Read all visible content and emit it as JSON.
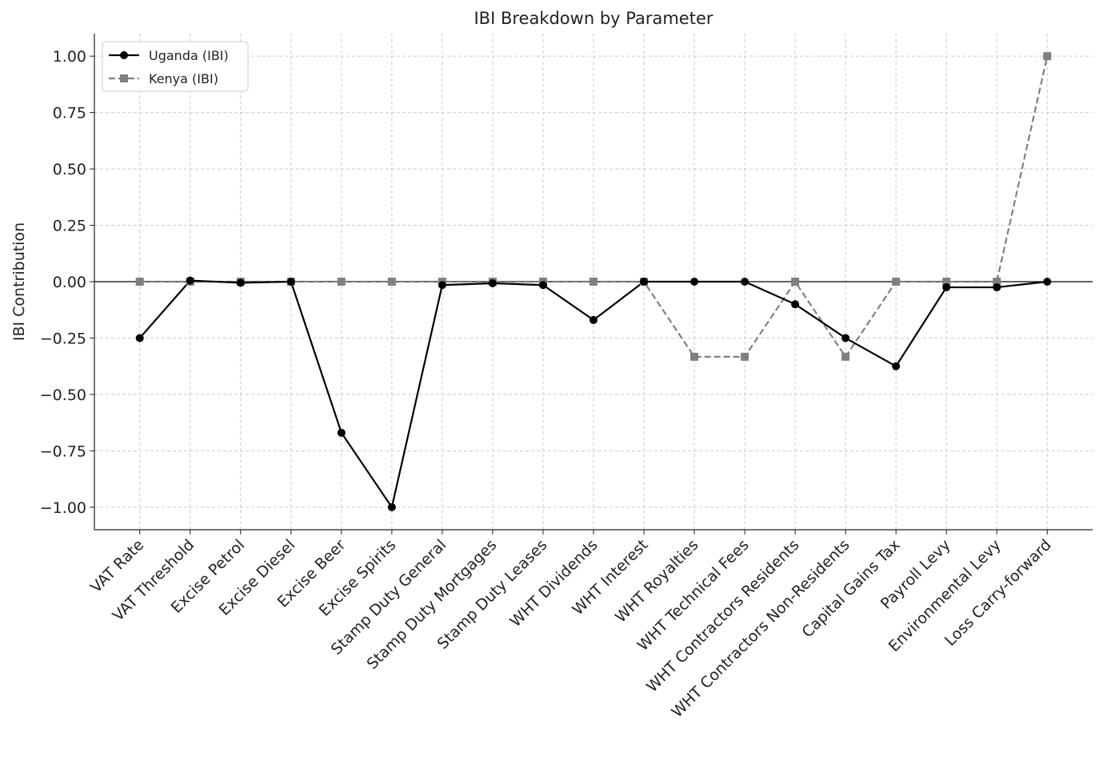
{
  "chart_data": {
    "type": "line",
    "title": "IBI Breakdown by Parameter",
    "xlabel": "",
    "ylabel": "IBI Contribution",
    "ylim": [
      -1.1,
      1.1
    ],
    "yticks": [
      1.0,
      0.75,
      0.5,
      0.25,
      0.0,
      -0.25,
      -0.5,
      -0.75,
      -1.0
    ],
    "ytick_labels": [
      "1.00",
      "0.75",
      "0.50",
      "0.25",
      "0.00",
      "−0.25",
      "−0.50",
      "−0.75",
      "−1.00"
    ],
    "grid": true,
    "legend_placement": "top-left",
    "categories": [
      "VAT Rate",
      "VAT Threshold",
      "Excise Petrol",
      "Excise Diesel",
      "Excise Beer",
      "Excise Spirits",
      "Stamp Duty General",
      "Stamp Duty Mortgages",
      "Stamp Duty Leases",
      "WHT Dividends",
      "WHT Interest",
      "WHT Royalties",
      "WHT Technical Fees",
      "WHT Contractors Residents",
      "WHT Contractors Non-Residents",
      "Capital Gains Tax",
      "Payroll Levy",
      "Environmental Levy",
      "Loss Carry-forward"
    ],
    "series": [
      {
        "name": "Uganda (IBI)",
        "color": "#000000",
        "marker": "circle",
        "linestyle": "solid",
        "values": [
          -0.25,
          0.005,
          -0.005,
          0.0,
          -0.67,
          -1.0,
          -0.015,
          -0.007,
          -0.015,
          -0.17,
          0.0,
          0.0,
          0.0,
          -0.1,
          -0.25,
          -0.375,
          -0.025,
          -0.025,
          0.0
        ]
      },
      {
        "name": "Kenya (IBI)",
        "color": "#808080",
        "marker": "square",
        "linestyle": "dashed",
        "values": [
          0,
          0,
          0,
          0,
          0,
          0,
          0,
          0,
          0,
          0,
          0,
          -0.333,
          -0.333,
          0,
          -0.333,
          0,
          0,
          0,
          1.0
        ]
      }
    ]
  }
}
